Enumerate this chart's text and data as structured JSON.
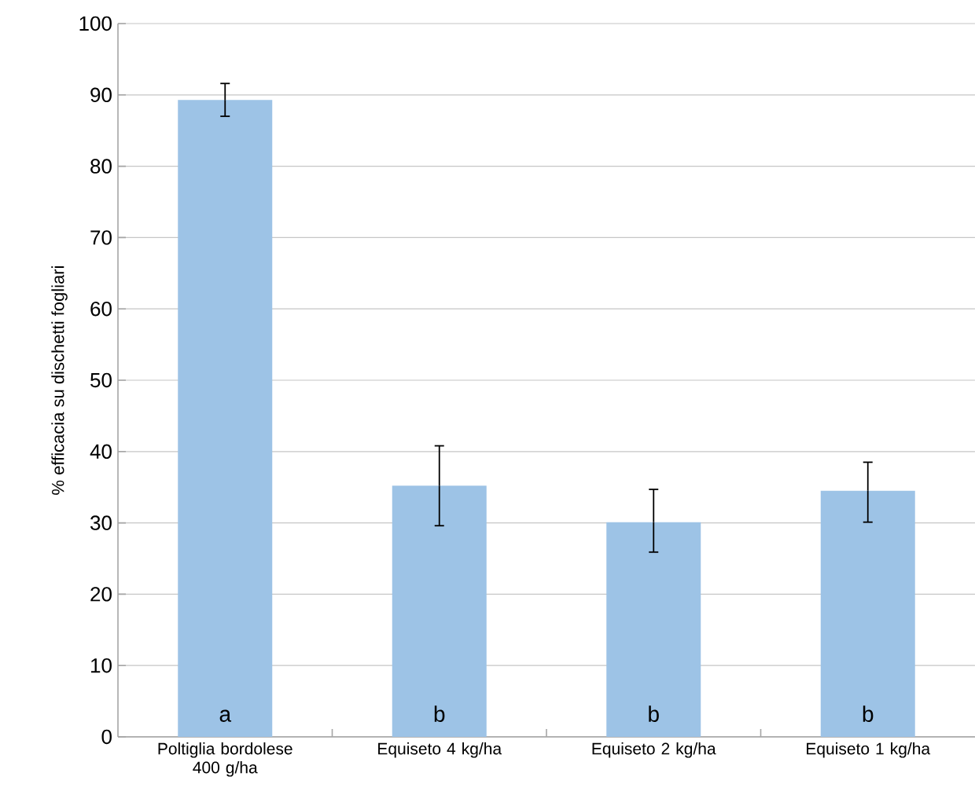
{
  "chart_data": {
    "type": "bar",
    "ylabel": "% efficacia su dischetti fogliari",
    "categories": [
      "Poltiglia bordolese 400 g/ha",
      "Equiseto 4 kg/ha",
      "Equiseto 2 kg/ha",
      "Equiseto 1 kg/ha"
    ],
    "values": [
      89.3,
      35.2,
      30.1,
      34.5
    ],
    "errors": [
      [
        87,
        91.6
      ],
      [
        29.6,
        40.8
      ],
      [
        25.9,
        34.7
      ],
      [
        30.1,
        38.5
      ]
    ],
    "color": "#9dc3e6",
    "ylim": [
      0,
      100
    ],
    "yticks": [
      0,
      10,
      20,
      30,
      40,
      50,
      60,
      70,
      80,
      90,
      100
    ],
    "grid": "y",
    "annotations": [
      "a",
      "b",
      "b",
      "b"
    ]
  }
}
